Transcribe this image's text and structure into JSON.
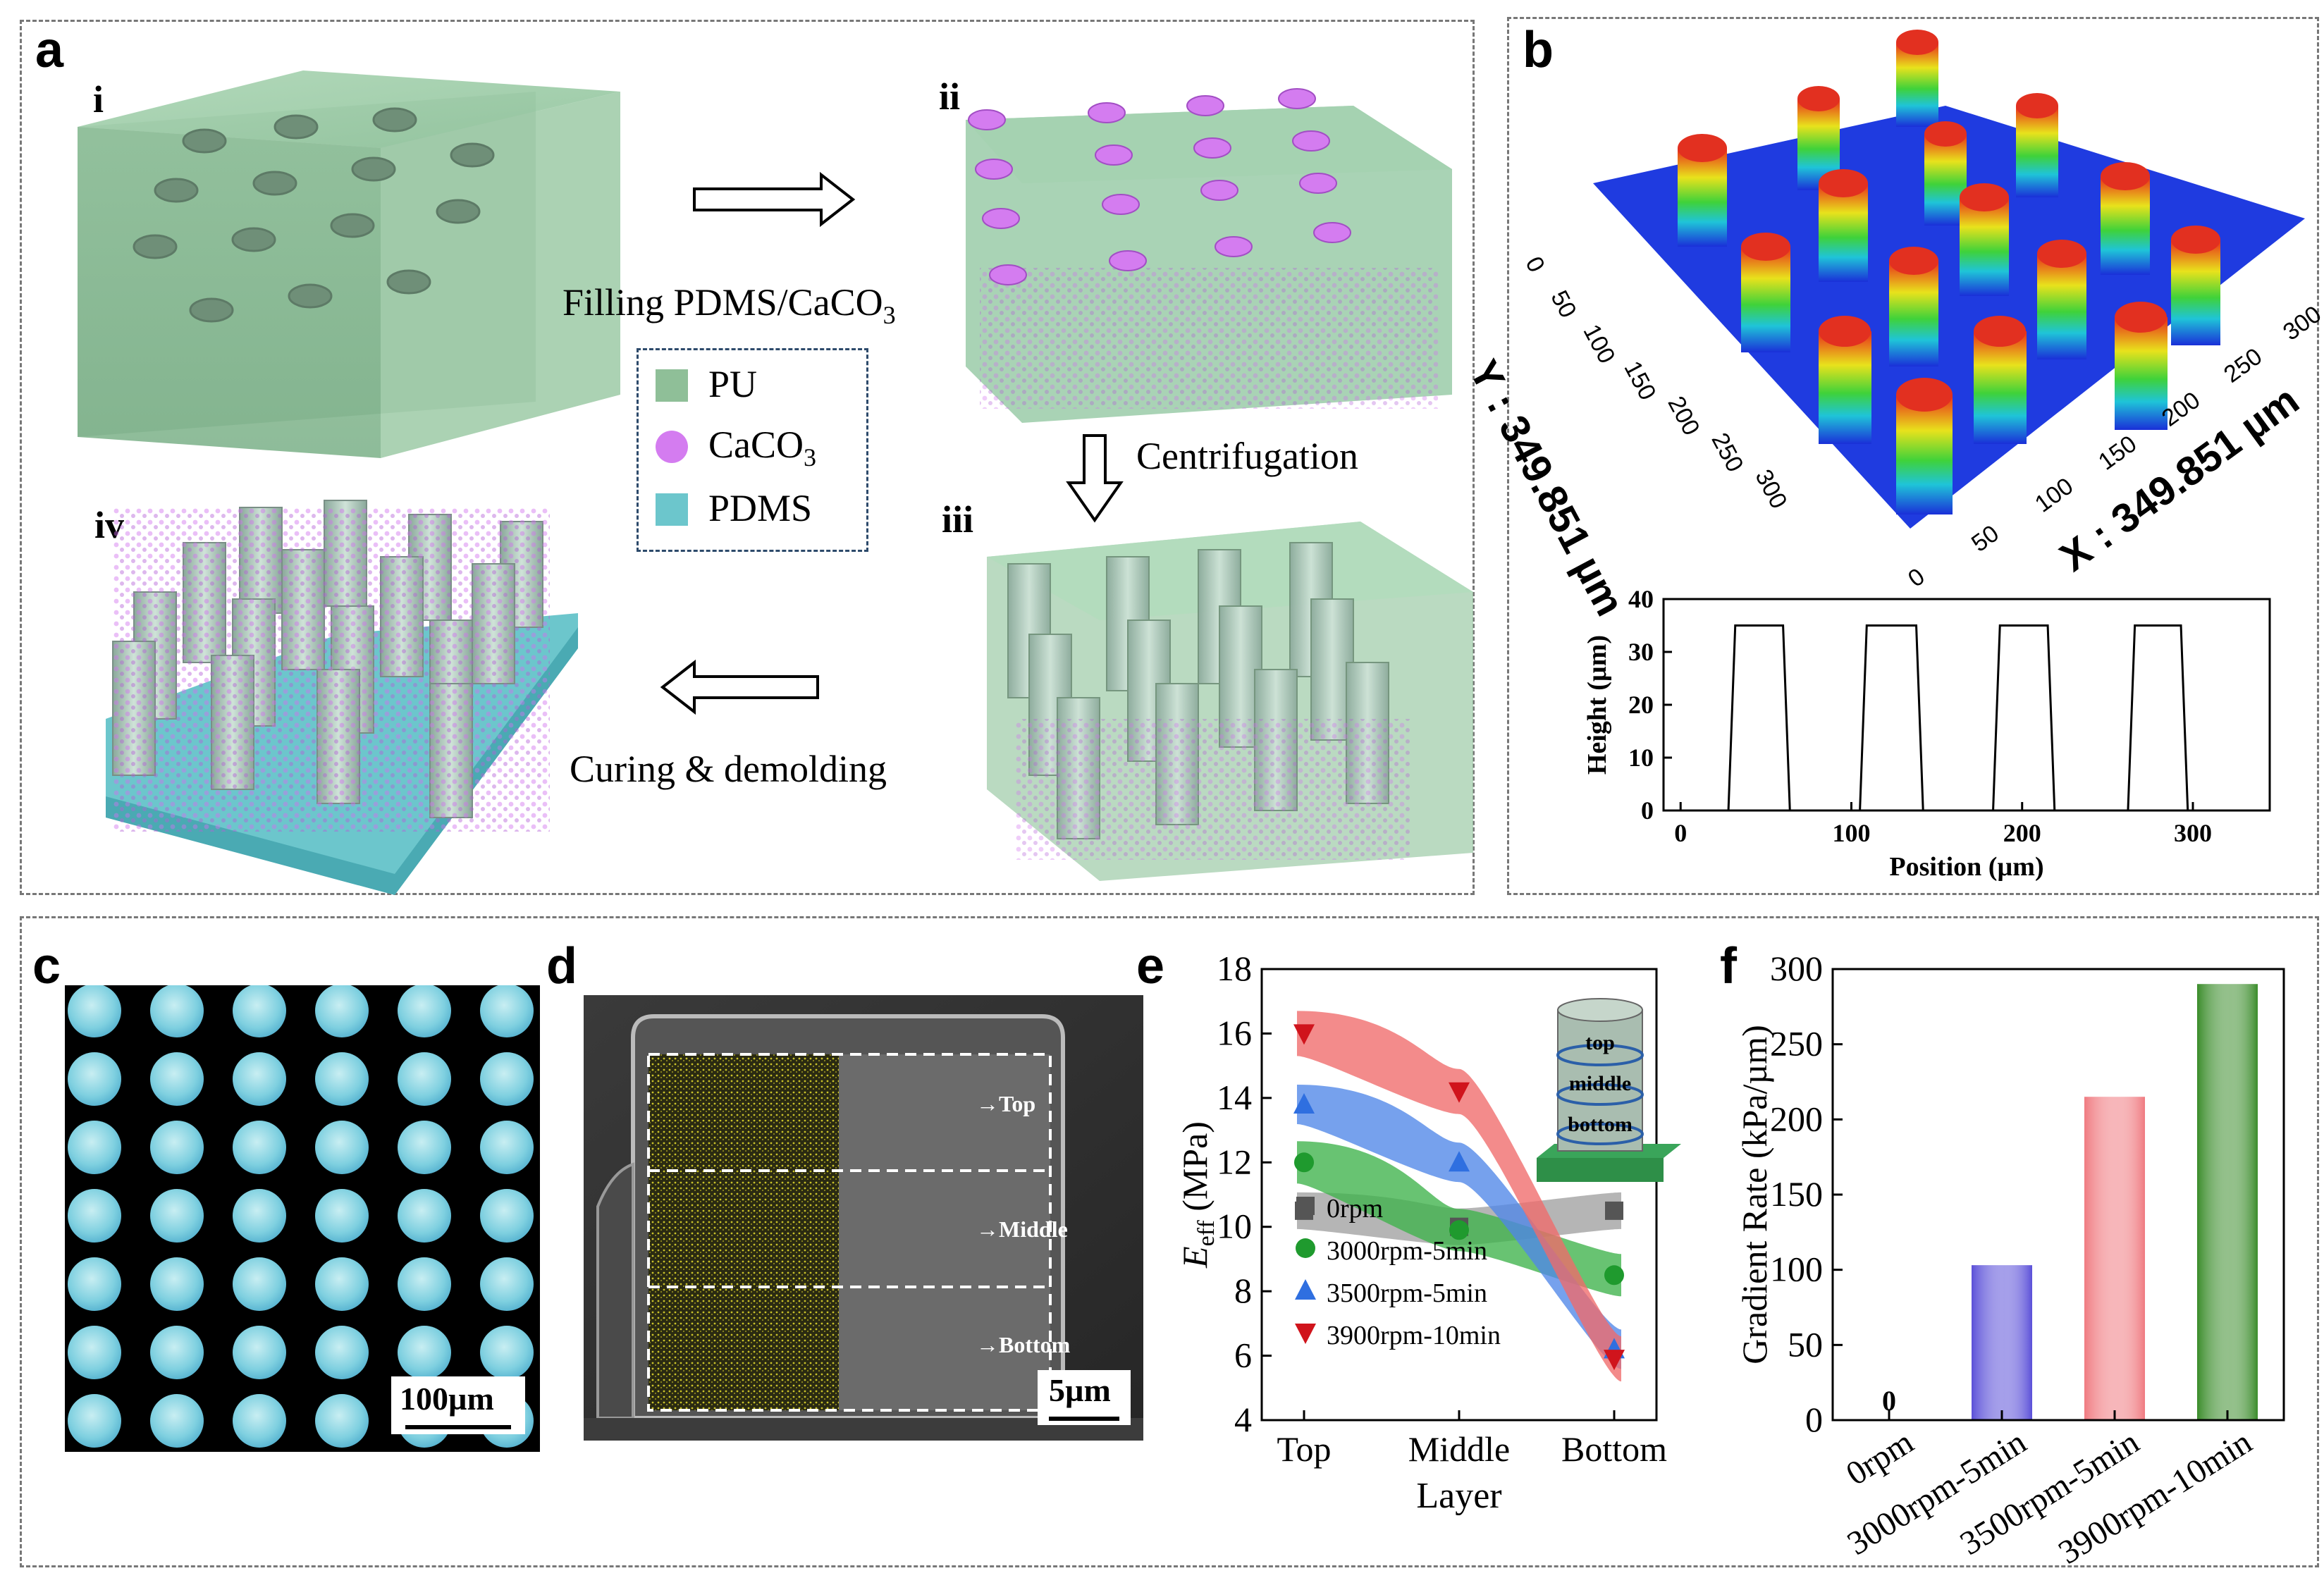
{
  "panels": {
    "a": "a",
    "b": "b",
    "c": "c",
    "d": "d",
    "e": "e",
    "f": "f"
  },
  "panel_a": {
    "steps": {
      "i": "i",
      "ii": "ii",
      "iii": "iii",
      "iv": "iv"
    },
    "arrow_filling": "Filling PDMS/CaCO",
    "arrow_filling_sub": "3",
    "arrow_centrifugation": "Centrifugation",
    "arrow_curing": "Curing & demolding",
    "legend": [
      {
        "label": "PU",
        "sub": "",
        "color": "#8fbf98",
        "shape": "square"
      },
      {
        "label": "CaCO",
        "sub": "3",
        "color": "#d47cf0",
        "shape": "circle"
      },
      {
        "label": "PDMS",
        "sub": "",
        "color": "#6cc6cc",
        "shape": "square"
      }
    ]
  },
  "panel_b": {
    "y_axis_label": "Y : 349.851 µm",
    "x_axis_label": "X : 349.851 µm",
    "y_ticks": [
      "0",
      "50",
      "100",
      "150",
      "200",
      "250",
      "300"
    ],
    "x_ticks": [
      "0",
      "50",
      "100",
      "150",
      "200",
      "250",
      "300"
    ],
    "profile_chart": {
      "type": "line",
      "xlabel": "Position (µm)",
      "ylabel": "Height (µm)",
      "x_ticks": [
        0,
        100,
        200,
        300
      ],
      "y_ticks": [
        0,
        10,
        20,
        30,
        40
      ],
      "xlim": [
        -10,
        345
      ],
      "ylim": [
        0,
        40
      ],
      "x": [
        0,
        28,
        32,
        60,
        64,
        105,
        109,
        138,
        142,
        183,
        187,
        215,
        219,
        262,
        266,
        293,
        297,
        320
      ],
      "y": [
        0,
        0,
        35,
        35,
        0,
        0,
        35,
        35,
        0,
        0,
        35,
        35,
        0,
        0,
        35,
        35,
        0,
        0
      ]
    }
  },
  "panel_c": {
    "scale_bar": "100µm"
  },
  "panel_d": {
    "labels": [
      "Top",
      "Middle",
      "Bottom"
    ],
    "scale_bar": "5µm"
  },
  "chart_data": [
    {
      "type": "scatter",
      "title": "",
      "xlabel": "Layer",
      "ylabel": "E",
      "ylabel_sub": "eff",
      "ylabel_unit": " (MPa)",
      "categories": [
        "Top",
        "Middle",
        "Bottom"
      ],
      "ylim": [
        4,
        18
      ],
      "y_ticks": [
        4,
        6,
        8,
        10,
        12,
        14,
        16,
        18
      ],
      "series": [
        {
          "name": "0rpm",
          "values": [
            10.5,
            10,
            10.5
          ],
          "color": "#555555",
          "marker": "square",
          "band": "#a0a0a0"
        },
        {
          "name": "3000rpm-5min",
          "values": [
            12,
            9.9,
            8.5
          ],
          "color": "#1f9a2e",
          "marker": "circle",
          "band": "#3db24a"
        },
        {
          "name": "3500rpm-5min",
          "values": [
            13.8,
            12,
            6.2
          ],
          "color": "#2f6fe0",
          "marker": "triangle-up",
          "band": "#4f86e8"
        },
        {
          "name": "3900rpm-10min",
          "values": [
            16,
            14.2,
            5.9
          ],
          "color": "#d0141c",
          "marker": "triangle-down",
          "band": "#f06a6a"
        }
      ],
      "inset_labels": [
        "top",
        "middle",
        "bottom"
      ]
    },
    {
      "type": "bar",
      "title": "",
      "xlabel": "",
      "ylabel": "Gradient Rate (kPa/µm)",
      "categories": [
        "0rpm",
        "3000rpm-5min",
        "3500rpm-5min",
        "3900rpm-10min"
      ],
      "values": [
        0,
        103,
        215,
        290
      ],
      "data_labels": [
        "0",
        "",
        "",
        ""
      ],
      "ylim": [
        0,
        300
      ],
      "y_ticks": [
        0,
        50,
        100,
        150,
        200,
        250,
        300
      ],
      "colors": [
        "#888888",
        "#5a4fd8",
        "#f07a80",
        "#3a8c2a"
      ]
    }
  ]
}
